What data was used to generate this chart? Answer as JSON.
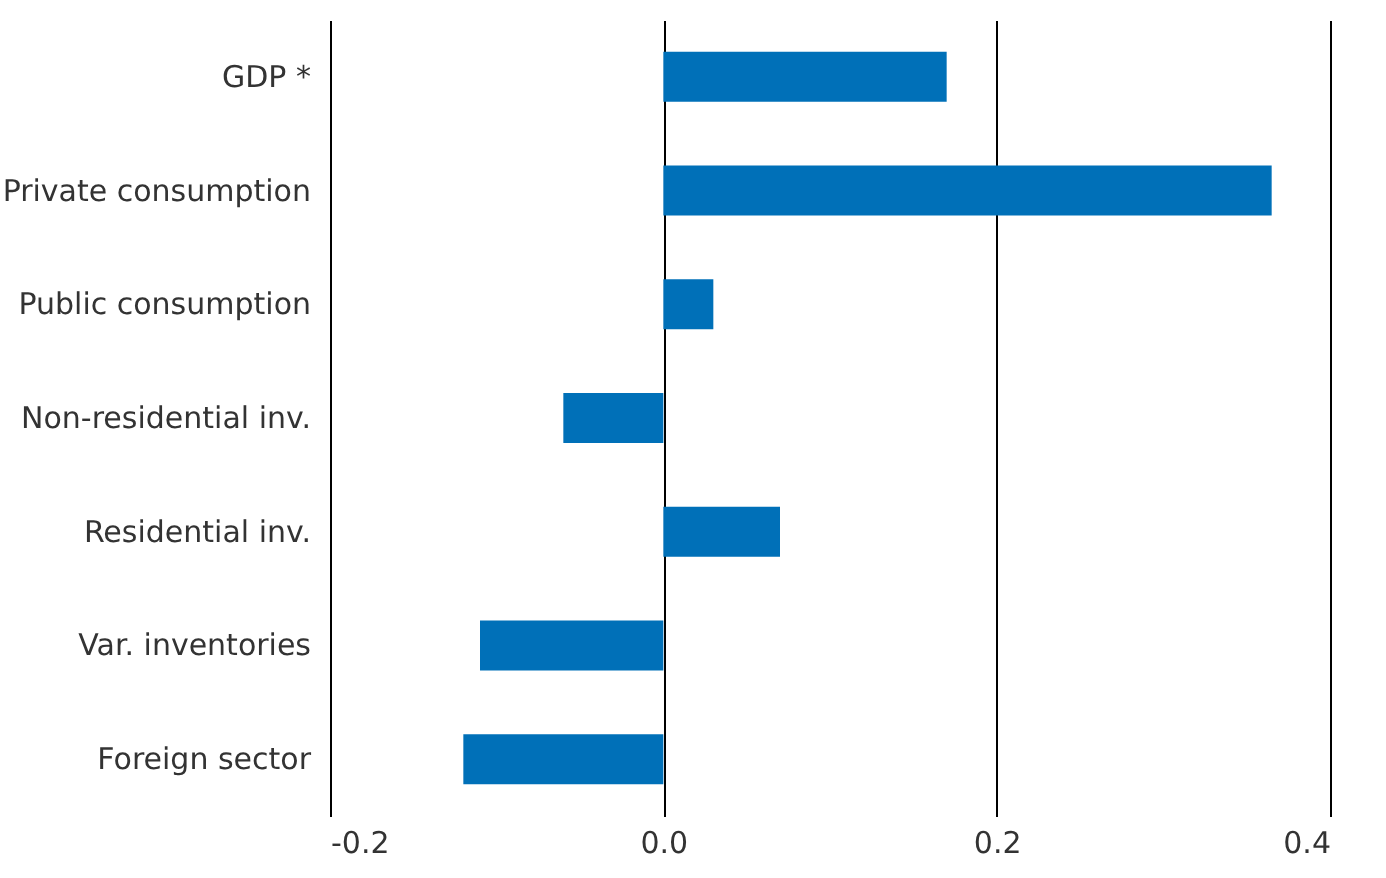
{
  "chart_data": {
    "type": "bar",
    "orientation": "horizontal",
    "categories": [
      "GDP *",
      "Private consumption",
      "Public consumption",
      "Non-residential inv.",
      "Residential inv.",
      "Var. inventories",
      "Foreign sector"
    ],
    "values": [
      0.17,
      0.365,
      0.03,
      -0.06,
      0.07,
      -0.11,
      -0.12
    ],
    "color": "#0070b8",
    "xlim": [
      -0.2,
      0.4
    ],
    "xticks": [
      {
        "value": -0.2,
        "label": "-0.2"
      },
      {
        "value": 0,
        "label": "0.0"
      },
      {
        "value": 0.2,
        "label": "0.2"
      },
      {
        "value": 0.4,
        "label": "0.4"
      }
    ],
    "grid": "x"
  }
}
